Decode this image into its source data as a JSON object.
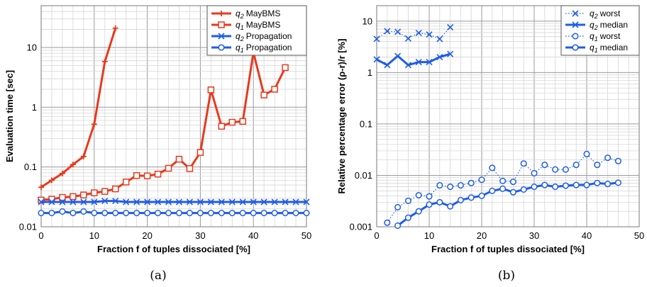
{
  "chart_data": [
    {
      "type": "line",
      "panel": "a",
      "caption": "(a)",
      "xlabel": "Fraction f of tuples dissociated [%]",
      "ylabel": "Evaluation time [sec]",
      "xlim": [
        0,
        50
      ],
      "ylim": [
        0.01,
        50
      ],
      "yscale": "log",
      "grid": true,
      "legend_position": "top-right",
      "xticks": [
        "0",
        "10",
        "20",
        "30",
        "40",
        "50"
      ],
      "yticks": [
        "0.01",
        "0.1",
        "1",
        "10"
      ],
      "series": [
        {
          "name_sub": "2",
          "name_rest": "MayBMS",
          "color": "#e8391d",
          "marker": "plus",
          "dash": "solid",
          "x": [
            0,
            2,
            4,
            6,
            8,
            10,
            12,
            14
          ],
          "y": [
            0.046,
            0.06,
            0.078,
            0.11,
            0.15,
            0.52,
            5.8,
            21
          ]
        },
        {
          "name_sub": "1",
          "name_rest": "MayBMS",
          "color": "#e8391d",
          "marker": "square",
          "dash": "solid",
          "x": [
            0,
            2,
            4,
            6,
            8,
            10,
            12,
            14,
            16,
            18,
            20,
            22,
            24,
            26,
            28,
            30,
            32,
            34,
            36,
            38,
            40,
            42,
            44,
            46
          ],
          "y": [
            0.028,
            0.029,
            0.031,
            0.032,
            0.034,
            0.037,
            0.039,
            0.043,
            0.056,
            0.072,
            0.071,
            0.076,
            0.095,
            0.135,
            0.094,
            0.175,
            1.95,
            0.48,
            0.56,
            0.58,
            8.3,
            1.6,
            2.0,
            4.6
          ]
        },
        {
          "name_sub": "2",
          "name_rest": "Propagation",
          "color": "#1f5ce8",
          "marker": "x",
          "dash": "solid",
          "x": [
            0,
            2,
            4,
            6,
            8,
            10,
            12,
            14,
            16,
            18,
            20,
            22,
            24,
            26,
            28,
            30,
            32,
            34,
            36,
            38,
            40,
            42,
            44,
            46,
            48,
            50
          ],
          "y": [
            0.026,
            0.026,
            0.026,
            0.026,
            0.026,
            0.026,
            0.027,
            0.027,
            0.026,
            0.026,
            0.026,
            0.026,
            0.026,
            0.026,
            0.026,
            0.026,
            0.026,
            0.026,
            0.026,
            0.026,
            0.026,
            0.026,
            0.026,
            0.026,
            0.026,
            0.026
          ]
        },
        {
          "name_sub": "1",
          "name_rest": "Propagation",
          "color": "#1f5ce8",
          "marker": "circle",
          "dash": "solid",
          "x": [
            0,
            2,
            4,
            6,
            8,
            10,
            12,
            14,
            16,
            18,
            20,
            22,
            24,
            26,
            28,
            30,
            32,
            34,
            36,
            38,
            40,
            42,
            44,
            46,
            48,
            50
          ],
          "y": [
            0.017,
            0.017,
            0.018,
            0.017,
            0.018,
            0.017,
            0.017,
            0.017,
            0.017,
            0.017,
            0.017,
            0.017,
            0.017,
            0.017,
            0.017,
            0.017,
            0.017,
            0.017,
            0.017,
            0.017,
            0.017,
            0.017,
            0.017,
            0.017,
            0.017,
            0.017
          ]
        }
      ]
    },
    {
      "type": "line",
      "panel": "b",
      "caption": "(b)",
      "xlabel": "Fraction f of tuples dissociated [%]",
      "ylabel": "Relative percentage error (ρ-r)/r [%]",
      "xlim": [
        0,
        50
      ],
      "ylim": [
        0.001,
        20
      ],
      "yscale": "log",
      "grid": true,
      "legend_position": "top-right",
      "xticks": [
        "0",
        "10",
        "20",
        "30",
        "40",
        "50"
      ],
      "yticks": [
        "0.001",
        "0.01",
        "0.1",
        "1",
        "10"
      ],
      "series": [
        {
          "name_sub": "2",
          "name_rest": "worst",
          "color": "#1f5ce8",
          "marker": "x",
          "dash": "dotted",
          "x": [
            0,
            2,
            4,
            6,
            8,
            10,
            12,
            14
          ],
          "y": [
            4.5,
            6.4,
            6.2,
            4.6,
            5.9,
            5.5,
            4.5,
            7.6
          ]
        },
        {
          "name_sub": "2",
          "name_rest": "median",
          "color": "#1f5ce8",
          "marker": "x",
          "dash": "solid",
          "x": [
            0,
            2,
            4,
            6,
            8,
            10,
            12,
            14
          ],
          "y": [
            1.8,
            1.4,
            2.1,
            1.4,
            1.6,
            1.6,
            2.0,
            2.3
          ]
        },
        {
          "name_sub": "1",
          "name_rest": "worst",
          "color": "#1f5ce8",
          "marker": "circle",
          "dash": "dotted",
          "x": [
            2,
            4,
            6,
            8,
            10,
            12,
            14,
            16,
            18,
            20,
            22,
            24,
            26,
            28,
            30,
            32,
            34,
            36,
            38,
            40,
            42,
            44,
            46
          ],
          "y": [
            0.0012,
            0.0024,
            0.0032,
            0.0041,
            0.0039,
            0.0064,
            0.006,
            0.0064,
            0.0071,
            0.0082,
            0.014,
            0.0078,
            0.0075,
            0.017,
            0.011,
            0.016,
            0.013,
            0.013,
            0.016,
            0.026,
            0.016,
            0.022,
            0.019
          ]
        },
        {
          "name_sub": "1",
          "name_rest": "median",
          "color": "#1f5ce8",
          "marker": "circle",
          "dash": "solid",
          "x": [
            4,
            6,
            8,
            10,
            12,
            14,
            16,
            18,
            20,
            22,
            24,
            26,
            28,
            30,
            32,
            34,
            36,
            38,
            40,
            42,
            44,
            46
          ],
          "y": [
            0.00105,
            0.0015,
            0.002,
            0.0027,
            0.003,
            0.0025,
            0.0033,
            0.0037,
            0.004,
            0.005,
            0.0055,
            0.0047,
            0.0053,
            0.006,
            0.0065,
            0.006,
            0.0063,
            0.0065,
            0.0065,
            0.0071,
            0.0068,
            0.0072
          ]
        }
      ]
    }
  ]
}
